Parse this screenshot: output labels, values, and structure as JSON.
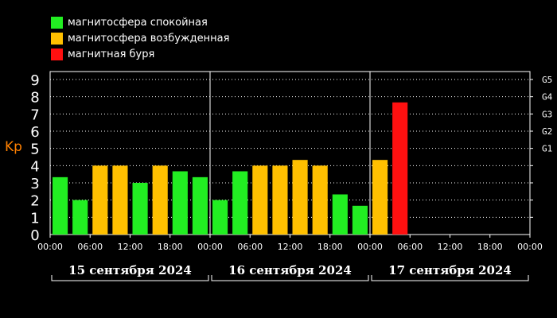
{
  "legend": [
    {
      "label": "магнитосфера спокойная",
      "color": "#22ee22"
    },
    {
      "label": "магнитосфера возбужденная",
      "color": "#ffc000"
    },
    {
      "label": "магнитная буря",
      "color": "#ff1010"
    }
  ],
  "chart_data": {
    "type": "bar",
    "ylabel": "Kp",
    "ylim": [
      0,
      9
    ],
    "yticks": [
      "0",
      "1",
      "2",
      "3",
      "4",
      "5",
      "6",
      "7",
      "8",
      "9"
    ],
    "storm_levels": [
      {
        "label": "G1",
        "kp": 5
      },
      {
        "label": "G2",
        "kp": 6
      },
      {
        "label": "G3",
        "kp": 7
      },
      {
        "label": "G4",
        "kp": 8
      },
      {
        "label": "G5",
        "kp": 9
      }
    ],
    "days": [
      "15 сентября 2024",
      "16 сентября 2024",
      "17 сентября 2024"
    ],
    "time_labels": [
      "00:00",
      "06:00",
      "12:00",
      "18:00"
    ],
    "end_time_label": "00:00",
    "intervals_per_day": 8,
    "series": [
      {
        "day": 0,
        "values": [
          3.33,
          2.0,
          4.0,
          4.0,
          3.0,
          4.0,
          3.67,
          3.33
        ],
        "levels": [
          "quiet",
          "quiet",
          "active",
          "active",
          "quiet",
          "active",
          "quiet",
          "quiet"
        ]
      },
      {
        "day": 1,
        "values": [
          2.0,
          3.67,
          4.0,
          4.0,
          4.33,
          4.0,
          2.33,
          1.67
        ],
        "levels": [
          "quiet",
          "quiet",
          "active",
          "active",
          "active",
          "active",
          "quiet",
          "quiet"
        ]
      },
      {
        "day": 2,
        "values": [
          4.33,
          7.67
        ],
        "levels": [
          "active",
          "storm"
        ]
      }
    ],
    "level_colors": {
      "quiet": "#22ee22",
      "active": "#ffc000",
      "storm": "#ff1010"
    },
    "grid": "dotted",
    "ylabel_color": "#ff8000"
  }
}
